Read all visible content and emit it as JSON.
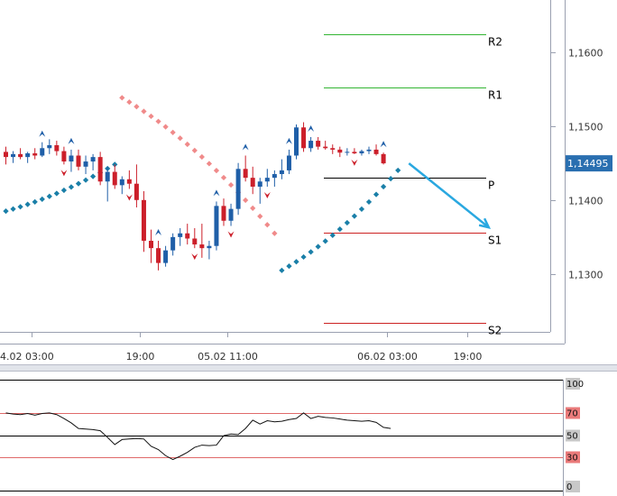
{
  "chart_data": [
    {
      "type": "candlestick",
      "x_tick_labels": [
        "4.02 03:00",
        "19:00",
        "05.02 11:00",
        "06.02 03:00",
        "19:00"
      ],
      "y_tick_labels": [
        "1,1600",
        "1,1500",
        "1,1400",
        "1,1300"
      ],
      "y_ticks": [
        1.16,
        1.15,
        1.14,
        1.13
      ],
      "ylim": [
        1.1222,
        1.167
      ],
      "current_price": 1.14495,
      "current_price_label": "1,14495",
      "colors": {
        "up": "#1f5fa8",
        "down": "#cc1f2a",
        "sar_high": "#f08a8a",
        "sar_low": "#1a7fa8",
        "resistance": "#33b533",
        "support": "#cc2222",
        "pivot": "#000000",
        "forecast_arrow": "#2aa8e0",
        "price_badge": "#2a6fb0"
      },
      "candles": [
        [
          1.1465,
          1.1472,
          1.1448,
          1.1458
        ],
        [
          1.1458,
          1.1466,
          1.145,
          1.1462
        ],
        [
          1.1462,
          1.147,
          1.1455,
          1.1458
        ],
        [
          1.1458,
          1.1465,
          1.145,
          1.1463
        ],
        [
          1.1463,
          1.147,
          1.1455,
          1.146
        ],
        [
          1.146,
          1.1478,
          1.1458,
          1.147
        ],
        [
          1.147,
          1.1482,
          1.1462,
          1.1474
        ],
        [
          1.1474,
          1.148,
          1.146,
          1.1466
        ],
        [
          1.1466,
          1.1472,
          1.1448,
          1.1452
        ],
        [
          1.1452,
          1.1468,
          1.1438,
          1.146
        ],
        [
          1.146,
          1.1468,
          1.144,
          1.1445
        ],
        [
          1.1445,
          1.146,
          1.1435,
          1.1452
        ],
        [
          1.1452,
          1.1462,
          1.144,
          1.1458
        ],
        [
          1.1458,
          1.1465,
          1.142,
          1.1425
        ],
        [
          1.1425,
          1.1445,
          1.1398,
          1.1438
        ],
        [
          1.1438,
          1.1448,
          1.1415,
          1.142
        ],
        [
          1.142,
          1.1432,
          1.1408,
          1.1428
        ],
        [
          1.1428,
          1.144,
          1.1415,
          1.1422
        ],
        [
          1.1422,
          1.1448,
          1.139,
          1.14
        ],
        [
          1.14,
          1.1412,
          1.133,
          1.1345
        ],
        [
          1.1345,
          1.136,
          1.1315,
          1.1335
        ],
        [
          1.1335,
          1.1345,
          1.1305,
          1.1315
        ],
        [
          1.1315,
          1.1338,
          1.131,
          1.1332
        ],
        [
          1.1332,
          1.1355,
          1.1325,
          1.135
        ],
        [
          1.135,
          1.1362,
          1.1338,
          1.1355
        ],
        [
          1.1355,
          1.1368,
          1.134,
          1.1348
        ],
        [
          1.1348,
          1.1362,
          1.1335,
          1.134
        ],
        [
          1.134,
          1.1368,
          1.1322,
          1.1335
        ],
        [
          1.1335,
          1.1345,
          1.132,
          1.1338
        ],
        [
          1.1338,
          1.1398,
          1.1332,
          1.1392
        ],
        [
          1.1392,
          1.1402,
          1.1365,
          1.1372
        ],
        [
          1.1372,
          1.1395,
          1.1365,
          1.1388
        ],
        [
          1.1388,
          1.145,
          1.138,
          1.1442
        ],
        [
          1.1442,
          1.146,
          1.1425,
          1.143
        ],
        [
          1.143,
          1.1445,
          1.1408,
          1.1418
        ],
        [
          1.1418,
          1.143,
          1.1395,
          1.1425
        ],
        [
          1.1425,
          1.1442,
          1.1418,
          1.143
        ],
        [
          1.143,
          1.144,
          1.1418,
          1.1435
        ],
        [
          1.1435,
          1.1455,
          1.1428,
          1.144
        ],
        [
          1.144,
          1.1468,
          1.1435,
          1.146
        ],
        [
          1.146,
          1.1502,
          1.1455,
          1.1498
        ],
        [
          1.1498,
          1.1505,
          1.1465,
          1.147
        ],
        [
          1.147,
          1.1485,
          1.1465,
          1.148
        ],
        [
          1.148,
          1.1485,
          1.1468,
          1.1472
        ],
        [
          1.1472,
          1.148,
          1.1468,
          1.147
        ],
        [
          1.147,
          1.1475,
          1.1462,
          1.1468
        ],
        [
          1.1468,
          1.1472,
          1.1458,
          1.1464
        ],
        [
          1.1464,
          1.147,
          1.146,
          1.1465
        ],
        [
          1.1465,
          1.147,
          1.1462,
          1.1463
        ],
        [
          1.1463,
          1.1468,
          1.146,
          1.1466
        ],
        [
          1.1466,
          1.1472,
          1.1462,
          1.1468
        ],
        [
          1.1468,
          1.1475,
          1.146,
          1.1462
        ],
        [
          1.1462,
          1.1464,
          1.1448,
          1.14495
        ]
      ],
      "parabolic_sar": {
        "high_x_range": [
          16,
          37
        ],
        "high_y_range": [
          1.1538,
          1.1355
        ],
        "low_first_x_range": [
          0,
          15
        ],
        "low_first_y_range": [
          1.1385,
          1.1448
        ],
        "low_second_x_range": [
          38,
          54
        ],
        "low_second_y_range": [
          1.1305,
          1.144
        ]
      },
      "fractal_up_at": [
        5,
        9,
        21,
        29,
        33,
        39,
        42,
        52
      ],
      "fractal_down_at": [
        8,
        17,
        26,
        31,
        36,
        48
      ],
      "pivot_levels": [
        {
          "label": "R2",
          "value": 1.1624
        },
        {
          "label": "R1",
          "value": 1.1552
        },
        {
          "label": "P",
          "value": 1.143
        },
        {
          "label": "S1",
          "value": 1.1356
        },
        {
          "label": "S2",
          "value": 1.1234
        }
      ],
      "forecast_arrow": {
        "from_index": 55.5,
        "from_value": 1.14495,
        "to_index": 66.5,
        "to_value": 1.1363
      }
    },
    {
      "type": "line",
      "ylim": [
        0,
        100
      ],
      "y_tick_labels": [
        "100",
        "70",
        "50",
        "30",
        "0"
      ],
      "levels": [
        100,
        70,
        50,
        30,
        0
      ],
      "level_colors": {
        "100": "#000000",
        "70": "#e06a6a",
        "50": "#000000",
        "30": "#e06a6a",
        "0": "#000000"
      },
      "values": [
        70.0,
        69.0,
        68.5,
        69.5,
        68.0,
        69.5,
        70.0,
        68.5,
        65.0,
        61.0,
        56.0,
        55.5,
        55.0,
        54.0,
        48.0,
        41.5,
        46.0,
        46.5,
        47.0,
        46.5,
        40.0,
        37.0,
        31.5,
        28.0,
        31.0,
        34.5,
        39.0,
        41.0,
        40.5,
        41.0,
        49.5,
        51.0,
        50.5,
        56.0,
        63.5,
        60.0,
        63.0,
        62.0,
        62.5,
        64.0,
        65.0,
        70.0,
        65.0,
        67.0,
        66.0,
        65.5,
        64.5,
        63.5,
        63.0,
        62.5,
        63.0,
        61.5,
        57.0,
        56.0
      ]
    }
  ]
}
